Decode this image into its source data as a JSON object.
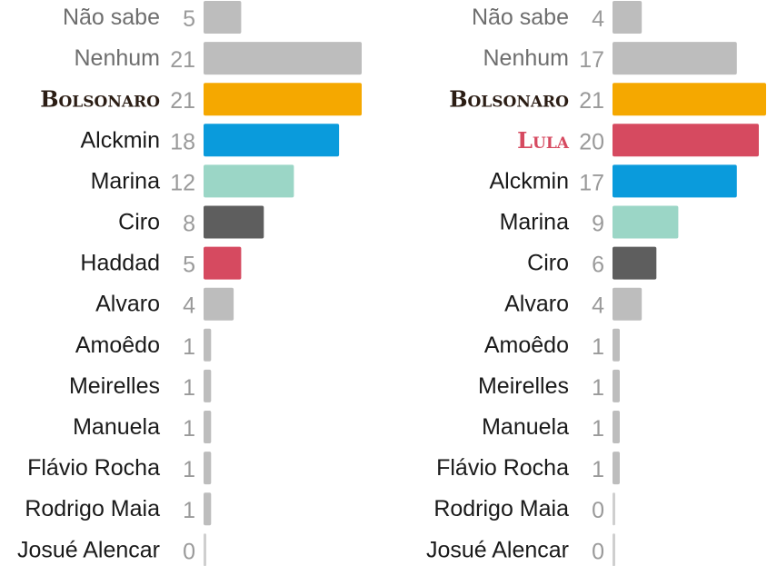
{
  "chart_data": [
    {
      "type": "bar",
      "orientation": "horizontal",
      "categories": [
        "Não sabe",
        "Nenhum",
        "Bolsonaro",
        "Alckmin",
        "Marina",
        "Ciro",
        "Haddad",
        "Alvaro",
        "Amoêdo",
        "Meirelles",
        "Manuela",
        "Flávio Rocha",
        "Rodrigo Maia",
        "Josué Alencar"
      ],
      "values": [
        5,
        21,
        21,
        18,
        12,
        8,
        5,
        4,
        1,
        1,
        1,
        1,
        1,
        0
      ],
      "highlight": [
        "Bolsonaro"
      ],
      "colors": [
        "#bdbdbd",
        "#bdbdbd",
        "#f5a800",
        "#0a9bdc",
        "#9bd6c6",
        "#5e5e5e",
        "#d64a60",
        "#bdbdbd",
        "#bdbdbd",
        "#bdbdbd",
        "#bdbdbd",
        "#bdbdbd",
        "#bdbdbd",
        "#bdbdbd"
      ],
      "xlim": [
        0,
        21
      ]
    },
    {
      "type": "bar",
      "orientation": "horizontal",
      "categories": [
        "Não sabe",
        "Nenhum",
        "Bolsonaro",
        "Lula",
        "Alckmin",
        "Marina",
        "Ciro",
        "Alvaro",
        "Amoêdo",
        "Meirelles",
        "Manuela",
        "Flávio Rocha",
        "Rodrigo Maia",
        "Josué Alencar"
      ],
      "values": [
        4,
        17,
        21,
        20,
        17,
        9,
        6,
        4,
        1,
        1,
        1,
        1,
        0,
        0
      ],
      "highlight": [
        "Bolsonaro",
        "Lula"
      ],
      "colors": [
        "#bdbdbd",
        "#bdbdbd",
        "#f5a800",
        "#d64a60",
        "#0a9bdc",
        "#9bd6c6",
        "#5e5e5e",
        "#bdbdbd",
        "#bdbdbd",
        "#bdbdbd",
        "#bdbdbd",
        "#bdbdbd",
        "#bdbdbd",
        "#bdbdbd"
      ],
      "xlim": [
        0,
        21
      ]
    }
  ]
}
